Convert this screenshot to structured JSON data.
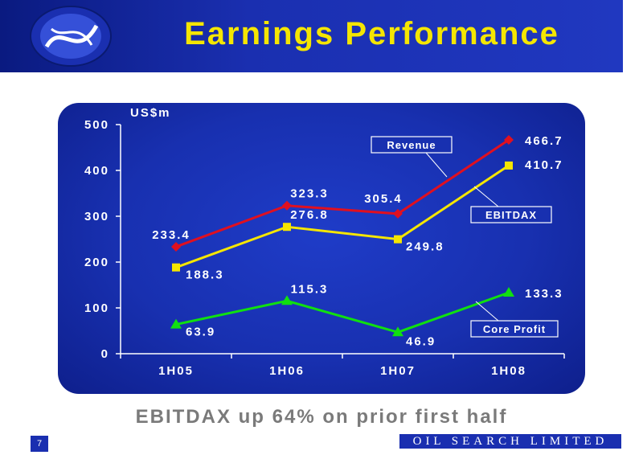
{
  "header": {
    "title": "Earnings Performance"
  },
  "footer": {
    "caption": "EBITDAX up 64% on prior first half",
    "page_number": "7",
    "company": "OIL SEARCH LIMITED"
  },
  "chart_data": {
    "type": "line",
    "ylabel": "US$m",
    "categories": [
      "1H05",
      "1H06",
      "1H07",
      "1H08"
    ],
    "ylim": [
      0,
      500
    ],
    "yticks": [
      0,
      100,
      200,
      300,
      400,
      500
    ],
    "grid": false,
    "series": [
      {
        "name": "Revenue",
        "values": [
          233.4,
          323.3,
          305.4,
          466.7
        ],
        "color": "#e01020",
        "marker": "diamond",
        "labels": [
          "233.4",
          "323.3",
          "305.4",
          "466.7"
        ]
      },
      {
        "name": "EBITDAX",
        "values": [
          188.3,
          276.8,
          249.8,
          410.7
        ],
        "color": "#f5e600",
        "marker": "square",
        "labels": [
          "188.3",
          "276.8",
          "249.8",
          "410.7"
        ]
      },
      {
        "name": "Core Profit",
        "values": [
          63.9,
          115.3,
          46.9,
          133.3
        ],
        "color": "#10e010",
        "marker": "triangle",
        "labels": [
          "63.9",
          "115.3",
          "46.9",
          "133.3"
        ]
      }
    ]
  }
}
